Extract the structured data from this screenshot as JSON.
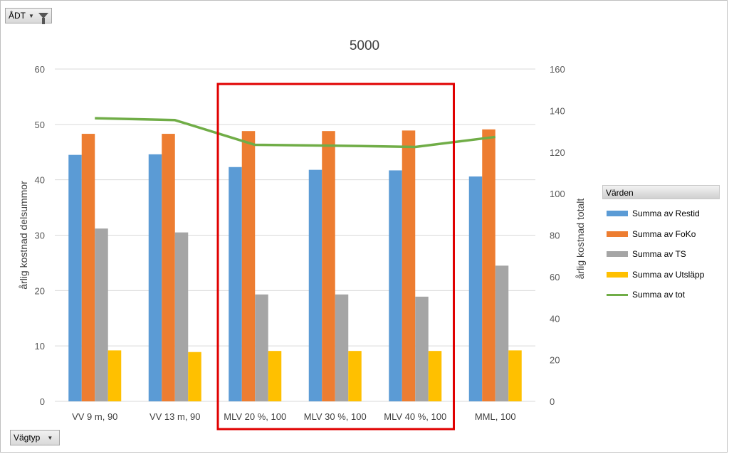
{
  "filter": {
    "adt_label": "ÅDT",
    "vagtyp_label": "Vägtyp"
  },
  "legend": {
    "title": "Värden",
    "items": [
      {
        "label": "Summa av Restid",
        "color": "#5b9bd5",
        "kind": "bar"
      },
      {
        "label": "Summa av FoKo",
        "color": "#ed7d31",
        "kind": "bar"
      },
      {
        "label": "Summa av TS",
        "color": "#a5a5a5",
        "kind": "bar"
      },
      {
        "label": "Summa av Utsläpp",
        "color": "#ffc000",
        "kind": "bar"
      },
      {
        "label": "Summa av tot",
        "color": "#70ad47",
        "kind": "line"
      }
    ]
  },
  "highlight_color": "#e00000",
  "chart_data": {
    "type": "bar",
    "title": "5000",
    "ylabel": "årlig kostnad delsummor",
    "y2label": "årlig kostnad totalt",
    "ylim": [
      0,
      60
    ],
    "y2lim": [
      0,
      160
    ],
    "yticks": [
      0,
      10,
      20,
      30,
      40,
      50,
      60
    ],
    "y2ticks": [
      0,
      20,
      40,
      60,
      80,
      100,
      120,
      140,
      160
    ],
    "grid": true,
    "legend_position": "right",
    "categories": [
      "VV 9 m, 90",
      "VV 13 m, 90",
      "MLV 20 %, 100",
      "MLV 30 %, 100",
      "MLV 40 %, 100",
      "MML, 100"
    ],
    "series": [
      {
        "name": "Summa av Restid",
        "axis": "left",
        "values": [
          44.5,
          44.6,
          42.3,
          41.8,
          41.7,
          40.6
        ]
      },
      {
        "name": "Summa av FoKo",
        "axis": "left",
        "values": [
          48.3,
          48.3,
          48.8,
          48.8,
          48.9,
          49.1
        ]
      },
      {
        "name": "Summa av TS",
        "axis": "left",
        "values": [
          31.2,
          30.5,
          19.3,
          19.3,
          18.9,
          24.5
        ]
      },
      {
        "name": "Summa av Utsläpp",
        "axis": "left",
        "values": [
          9.2,
          8.9,
          9.1,
          9.1,
          9.1,
          9.2
        ]
      },
      {
        "name": "Summa av tot",
        "axis": "right",
        "type": "line",
        "values": [
          136.3,
          135.4,
          123.5,
          123.1,
          122.5,
          127.3
        ]
      }
    ],
    "highlighted_categories": [
      "MLV 20 %, 100",
      "MLV 30 %, 100",
      "MLV 40 %, 100"
    ]
  }
}
